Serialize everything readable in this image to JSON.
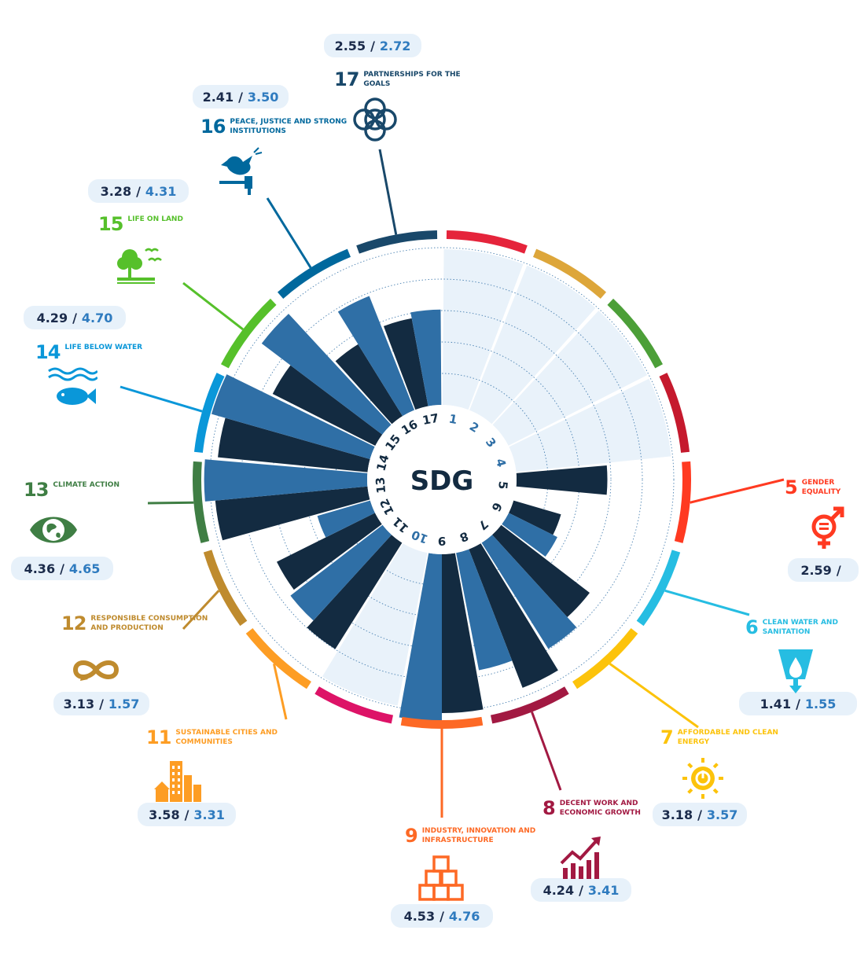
{
  "chart_data": {
    "type": "polar-bar",
    "center_label": "SDG",
    "rmax": 5,
    "series": [
      {
        "name": "",
        "color": "#132b41"
      },
      {
        "name": "",
        "color": "#2f6fa6"
      }
    ],
    "goals": [
      {
        "n": 1,
        "number": "1",
        "color": "#e5243b",
        "title": "",
        "v1": null,
        "v2": null
      },
      {
        "n": 2,
        "number": "2",
        "color": "#dda63a",
        "title": "",
        "v1": null,
        "v2": null
      },
      {
        "n": 3,
        "number": "3",
        "color": "#4c9f38",
        "title": "",
        "v1": null,
        "v2": null
      },
      {
        "n": 4,
        "number": "4",
        "color": "#c5192d",
        "title": "",
        "v1": null,
        "v2": null
      },
      {
        "n": 5,
        "number": "5",
        "color": "#ff3a21",
        "title": "Gender Equality",
        "v1": 2.59,
        "v2": null,
        "val1_text": "2.59",
        "val2_text": ""
      },
      {
        "n": 6,
        "number": "6",
        "color": "#26bde2",
        "title": "Clean water and sanitation",
        "v1": 1.41,
        "v2": 1.55,
        "val1_text": "1.41",
        "val2_text": "1.55"
      },
      {
        "n": 7,
        "number": "7",
        "color": "#fcc30b",
        "title": "Affordable and clean energy",
        "v1": 3.18,
        "v2": 3.57,
        "val1_text": "3.18",
        "val2_text": "3.57"
      },
      {
        "n": 8,
        "number": "8",
        "color": "#a21942",
        "title": "Decent work and economic growth",
        "v1": 4.24,
        "v2": 3.41,
        "val1_text": "4.24",
        "val2_text": "3.41"
      },
      {
        "n": 9,
        "number": "9",
        "color": "#fd6925",
        "title": "Industry, innovation and infrastructure",
        "v1": 4.53,
        "v2": 4.76,
        "val1_text": "4.53",
        "val2_text": "4.76"
      },
      {
        "n": 10,
        "number": "10",
        "color": "#dd1367",
        "title": "",
        "v1": null,
        "v2": null
      },
      {
        "n": 11,
        "number": "11",
        "color": "#fd9d24",
        "title": "Sustainable cities and communities",
        "v1": 3.58,
        "v2": 3.31,
        "val1_text": "3.58",
        "val2_text": "3.31"
      },
      {
        "n": 12,
        "number": "12",
        "color": "#bf8b2e",
        "title": "Responsible consumption and production",
        "v1": 3.13,
        "v2": 1.57,
        "val1_text": "3.13",
        "val2_text": "1.57"
      },
      {
        "n": 13,
        "number": "13",
        "color": "#3f7e44",
        "title": "Climate action",
        "v1": 4.36,
        "v2": 4.65,
        "val1_text": "4.36",
        "val2_text": "4.65"
      },
      {
        "n": 14,
        "number": "14",
        "color": "#0a97d9",
        "title": "Life below water",
        "v1": 4.29,
        "v2": 4.7,
        "val1_text": "4.29",
        "val2_text": "4.70"
      },
      {
        "n": 15,
        "number": "15",
        "color": "#56c02b",
        "title": "Life on land",
        "v1": 3.28,
        "v2": 4.31,
        "val1_text": "3.28",
        "val2_text": "4.31"
      },
      {
        "n": 16,
        "number": "16",
        "color": "#00689d",
        "title": "Peace, justice and strong institutions",
        "v1": 2.41,
        "v2": 3.5,
        "val1_text": "2.41",
        "val2_text": "3.50"
      },
      {
        "n": 17,
        "number": "17",
        "color": "#19486a",
        "title": "Partnerships for the goals",
        "v1": 2.55,
        "v2": 2.72,
        "val1_text": "2.55",
        "val2_text": "2.72"
      }
    ]
  },
  "icons": {
    "5": "gender-equality-icon",
    "6": "water-drop-icon",
    "7": "sun-power-icon",
    "8": "growth-chart-icon",
    "9": "cubes-icon",
    "11": "city-buildings-icon",
    "12": "infinity-loop-icon",
    "13": "eye-globe-icon",
    "14": "fish-icon",
    "15": "tree-birds-icon",
    "16": "dove-gavel-icon",
    "17": "interlocking-rings-icon"
  }
}
